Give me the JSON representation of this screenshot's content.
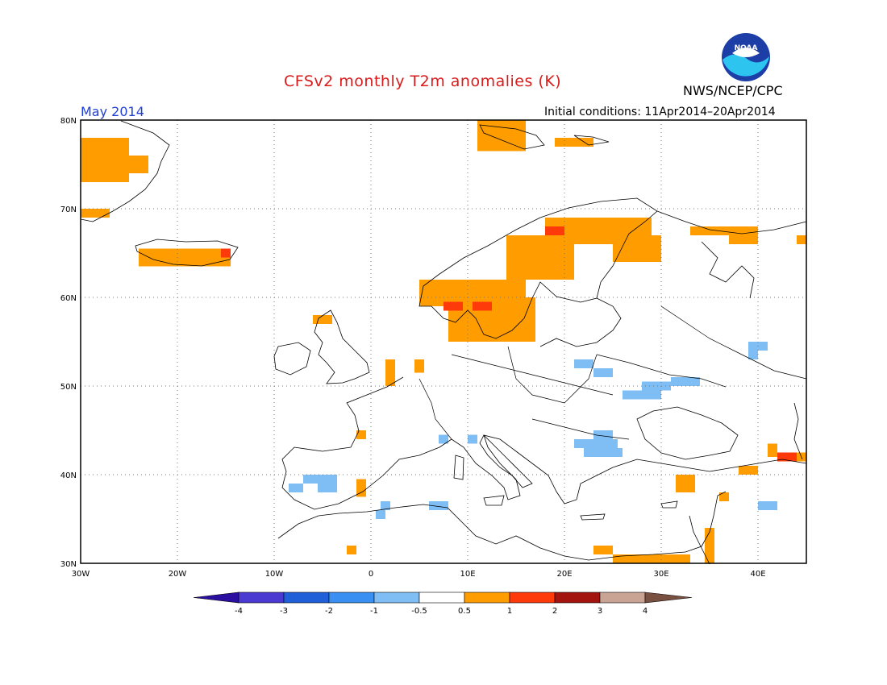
{
  "header": {
    "title": "CFSv2 monthly T2m anomalies (K)",
    "agency": "NWS/NCEP/CPC",
    "month": "May 2014",
    "initial_conditions": "Initial conditions: 11Apr2014–20Apr2014"
  },
  "logo": {
    "text": "NOAA",
    "icon": "noaa-logo-icon"
  },
  "map": {
    "lon_range": [
      -30,
      45
    ],
    "lat_range": [
      30,
      80
    ],
    "lon_ticks": [
      {
        "value": -30,
        "label": "30W"
      },
      {
        "value": -20,
        "label": "20W"
      },
      {
        "value": -10,
        "label": "10W"
      },
      {
        "value": 0,
        "label": "0"
      },
      {
        "value": 10,
        "label": "10E"
      },
      {
        "value": 20,
        "label": "20E"
      },
      {
        "value": 30,
        "label": "30E"
      },
      {
        "value": 40,
        "label": "40E"
      }
    ],
    "lat_ticks": [
      {
        "value": 30,
        "label": "30N"
      },
      {
        "value": 40,
        "label": "40N"
      },
      {
        "value": 50,
        "label": "50N"
      },
      {
        "value": 60,
        "label": "60N"
      },
      {
        "value": 70,
        "label": "70N"
      },
      {
        "value": 80,
        "label": "80N"
      }
    ],
    "grid": "dotted",
    "anomaly_patches": [
      {
        "lon": [
          -30,
          -25
        ],
        "lat": [
          73,
          78
        ],
        "class": "0.5-1"
      },
      {
        "lon": [
          -25,
          -23
        ],
        "lat": [
          74,
          76
        ],
        "class": "0.5-1"
      },
      {
        "lon": [
          -30,
          -27
        ],
        "lat": [
          69,
          70
        ],
        "class": "0.5-1"
      },
      {
        "lon": [
          -24,
          -14.5
        ],
        "lat": [
          63.5,
          65.5
        ],
        "class": "0.5-1"
      },
      {
        "lon": [
          -15.5,
          -14.5
        ],
        "lat": [
          64.5,
          65.5
        ],
        "class": "1-2"
      },
      {
        "lon": [
          -6,
          -4
        ],
        "lat": [
          57,
          58
        ],
        "class": "0.5-1"
      },
      {
        "lon": [
          1.5,
          2.5
        ],
        "lat": [
          50,
          53
        ],
        "class": "0.5-1"
      },
      {
        "lon": [
          4.5,
          5.5
        ],
        "lat": [
          51.5,
          53
        ],
        "class": "0.5-1"
      },
      {
        "lon": [
          5,
          16
        ],
        "lat": [
          59,
          62
        ],
        "class": "0.5-1"
      },
      {
        "lon": [
          8,
          17
        ],
        "lat": [
          55,
          60
        ],
        "class": "0.5-1"
      },
      {
        "lon": [
          14,
          21
        ],
        "lat": [
          62,
          67
        ],
        "class": "0.5-1"
      },
      {
        "lon": [
          18,
          29
        ],
        "lat": [
          66,
          69
        ],
        "class": "0.5-1"
      },
      {
        "lon": [
          25,
          30
        ],
        "lat": [
          64,
          67
        ],
        "class": "0.5-1"
      },
      {
        "lon": [
          7.5,
          9.5
        ],
        "lat": [
          58.5,
          59.5
        ],
        "class": "1-2"
      },
      {
        "lon": [
          10.5,
          12.5
        ],
        "lat": [
          58.5,
          59.5
        ],
        "class": "1-2"
      },
      {
        "lon": [
          18,
          20
        ],
        "lat": [
          67,
          68
        ],
        "class": "1-2"
      },
      {
        "lon": [
          11,
          16
        ],
        "lat": [
          76.5,
          80
        ],
        "class": "0.5-1"
      },
      {
        "lon": [
          19,
          23
        ],
        "lat": [
          77,
          78
        ],
        "class": "0.5-1"
      },
      {
        "lon": [
          33,
          37
        ],
        "lat": [
          67,
          68
        ],
        "class": "0.5-1"
      },
      {
        "lon": [
          37,
          40
        ],
        "lat": [
          66,
          68
        ],
        "class": "0.5-1"
      },
      {
        "lon": [
          44,
          45
        ],
        "lat": [
          66,
          67
        ],
        "class": "0.5-1"
      },
      {
        "lon": [
          -1.5,
          -0.5
        ],
        "lat": [
          44,
          45
        ],
        "class": "0.5-1"
      },
      {
        "lon": [
          -1.5,
          -0.5
        ],
        "lat": [
          37.5,
          39.5
        ],
        "class": "0.5-1"
      },
      {
        "lon": [
          -2.5,
          -1.5
        ],
        "lat": [
          31,
          32
        ],
        "class": "0.5-1"
      },
      {
        "lon": [
          23,
          25
        ],
        "lat": [
          31,
          32
        ],
        "class": "0.5-1"
      },
      {
        "lon": [
          25,
          33
        ],
        "lat": [
          30,
          31
        ],
        "class": "0.5-1"
      },
      {
        "lon": [
          34.5,
          35.5
        ],
        "lat": [
          30,
          34
        ],
        "class": "0.5-1"
      },
      {
        "lon": [
          36,
          37
        ],
        "lat": [
          37,
          38
        ],
        "class": "0.5-1"
      },
      {
        "lon": [
          31.5,
          33.5
        ],
        "lat": [
          38,
          40
        ],
        "class": "0.5-1"
      },
      {
        "lon": [
          38,
          40
        ],
        "lat": [
          40,
          41
        ],
        "class": "0.5-1"
      },
      {
        "lon": [
          41,
          42
        ],
        "lat": [
          42,
          43.5
        ],
        "class": "0.5-1"
      },
      {
        "lon": [
          44,
          45
        ],
        "lat": [
          41.5,
          42.5
        ],
        "class": "0.5-1"
      },
      {
        "lon": [
          42,
          44
        ],
        "lat": [
          41.5,
          42.5
        ],
        "class": "1-2"
      },
      {
        "lon": [
          -8.5,
          -7
        ],
        "lat": [
          38,
          39
        ],
        "class": "-1--0.5"
      },
      {
        "lon": [
          -7,
          -5.5
        ],
        "lat": [
          39,
          40
        ],
        "class": "-1--0.5"
      },
      {
        "lon": [
          -5.5,
          -3.5
        ],
        "lat": [
          38,
          40
        ],
        "class": "-1--0.5"
      },
      {
        "lon": [
          1,
          2
        ],
        "lat": [
          36,
          37
        ],
        "class": "-1--0.5"
      },
      {
        "lon": [
          0.5,
          1.5
        ],
        "lat": [
          35,
          36
        ],
        "class": "-1--0.5"
      },
      {
        "lon": [
          6,
          8
        ],
        "lat": [
          36,
          37
        ],
        "class": "-1--0.5"
      },
      {
        "lon": [
          7,
          8
        ],
        "lat": [
          43.5,
          44.5
        ],
        "class": "-1--0.5"
      },
      {
        "lon": [
          10,
          11
        ],
        "lat": [
          43.5,
          44.5
        ],
        "class": "-1--0.5"
      },
      {
        "lon": [
          21,
          25.5
        ],
        "lat": [
          43,
          44
        ],
        "class": "-1--0.5"
      },
      {
        "lon": [
          22,
          26
        ],
        "lat": [
          42,
          43
        ],
        "class": "-1--0.5"
      },
      {
        "lon": [
          23,
          25
        ],
        "lat": [
          44,
          45
        ],
        "class": "-1--0.5"
      },
      {
        "lon": [
          21,
          23
        ],
        "lat": [
          52,
          53
        ],
        "class": "-1--0.5"
      },
      {
        "lon": [
          23,
          25
        ],
        "lat": [
          51,
          52
        ],
        "class": "-1--0.5"
      },
      {
        "lon": [
          26,
          30
        ],
        "lat": [
          48.5,
          49.5
        ],
        "class": "-1--0.5"
      },
      {
        "lon": [
          28,
          31
        ],
        "lat": [
          49.5,
          50.5
        ],
        "class": "-1--0.5"
      },
      {
        "lon": [
          31,
          34
        ],
        "lat": [
          50,
          51
        ],
        "class": "-1--0.5"
      },
      {
        "lon": [
          39,
          41
        ],
        "lat": [
          54,
          55
        ],
        "class": "-1--0.5"
      },
      {
        "lon": [
          39,
          40
        ],
        "lat": [
          53,
          54
        ],
        "class": "-1--0.5"
      },
      {
        "lon": [
          40,
          42
        ],
        "lat": [
          36,
          37
        ],
        "class": "-1--0.5"
      }
    ]
  },
  "legend": {
    "classes": [
      {
        "id": "<-4",
        "color": "#2b0fa0"
      },
      {
        "id": "-4--3",
        "color": "#4a3ad1"
      },
      {
        "id": "-3--2",
        "color": "#1f5fd8"
      },
      {
        "id": "-2--1",
        "color": "#3a8ff2"
      },
      {
        "id": "-1--0.5",
        "color": "#7fbef5"
      },
      {
        "id": "-0.5-0.5",
        "color": "#ffffff"
      },
      {
        "id": "0.5-1",
        "color": "#ff9d00"
      },
      {
        "id": "1-2",
        "color": "#ff3a0a"
      },
      {
        "id": "2-3",
        "color": "#a4140f"
      },
      {
        "id": "3-4",
        "color": "#c9a494"
      },
      {
        "id": ">4",
        "color": "#7a5040"
      }
    ],
    "tick_labels": [
      "-4",
      "-3",
      "-2",
      "-1",
      "-0.5",
      "0.5",
      "1",
      "2",
      "3",
      "4"
    ]
  }
}
